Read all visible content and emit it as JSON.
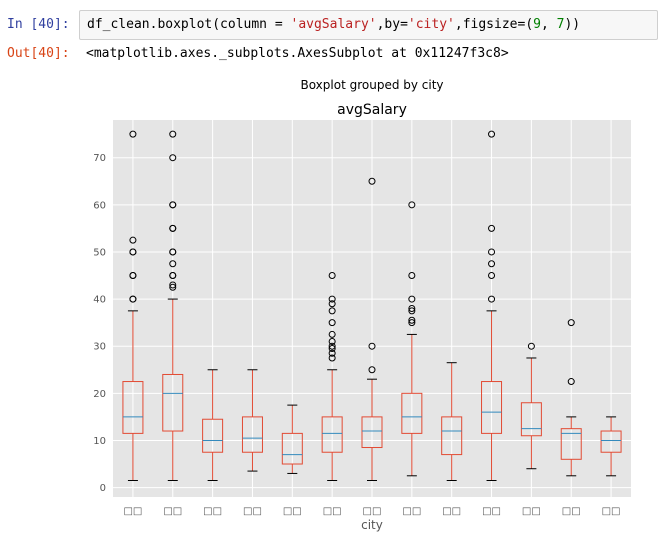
{
  "cell_input": {
    "prompt": "In [40]:",
    "code_parts": [
      {
        "text": "df_clean.boxplot(column = ",
        "kind": "plain"
      },
      {
        "text": "'avgSalary'",
        "kind": "str"
      },
      {
        "text": ",by=",
        "kind": "plain"
      },
      {
        "text": "'city'",
        "kind": "str"
      },
      {
        "text": ",figsize=(",
        "kind": "plain"
      },
      {
        "text": "9",
        "kind": "num"
      },
      {
        "text": ", ",
        "kind": "plain"
      },
      {
        "text": "7",
        "kind": "num"
      },
      {
        "text": "))",
        "kind": "plain"
      }
    ]
  },
  "cell_output": {
    "prompt": "Out[40]:",
    "text": "<matplotlib.axes._subplots.AxesSubplot at 0x11247f3c8>"
  },
  "chart_data": {
    "type": "boxplot",
    "suptitle": "Boxplot grouped by city",
    "title": "avgSalary",
    "xlabel": "city",
    "ylabel": "",
    "ylim": [
      -2,
      78
    ],
    "yticks": [
      0,
      10,
      20,
      30,
      40,
      50,
      60,
      70
    ],
    "grid": true,
    "colors": {
      "background": "#e5e5e5",
      "grid": "#ffffff",
      "box": "#e24a33",
      "median": "#348abd",
      "flier": "#000000",
      "text": "#555555"
    },
    "categories": [
      "□□",
      "□□",
      "□□",
      "□□",
      "□□",
      "□□",
      "□□",
      "□□",
      "□□",
      "□□",
      "□□",
      "□□",
      "□□"
    ],
    "boxes": [
      {
        "whislo": 1.5,
        "q1": 11.5,
        "med": 15,
        "q3": 22.5,
        "whishi": 37.5,
        "fliers": [
          40,
          40,
          45,
          45,
          50,
          50,
          52.5,
          75
        ]
      },
      {
        "whislo": 1.5,
        "q1": 12,
        "med": 20,
        "q3": 24,
        "whishi": 40,
        "fliers": [
          42.5,
          43,
          45,
          45,
          47.5,
          50,
          50,
          55,
          55,
          60,
          60,
          70,
          75
        ]
      },
      {
        "whislo": 1.5,
        "q1": 7.5,
        "med": 10,
        "q3": 14.5,
        "whishi": 25,
        "fliers": []
      },
      {
        "whislo": 3.5,
        "q1": 7.5,
        "med": 10.5,
        "q3": 15,
        "whishi": 25,
        "fliers": []
      },
      {
        "whislo": 3,
        "q1": 5,
        "med": 7,
        "q3": 11.5,
        "whishi": 17.5,
        "fliers": []
      },
      {
        "whislo": 1.5,
        "q1": 7.5,
        "med": 11.5,
        "q3": 15,
        "whishi": 25,
        "fliers": [
          27.5,
          28.5,
          29.5,
          30,
          31,
          32.5,
          35,
          37.5,
          39,
          40,
          45
        ]
      },
      {
        "whislo": 1.5,
        "q1": 8.5,
        "med": 12,
        "q3": 15,
        "whishi": 23,
        "fliers": [
          25,
          30,
          65
        ]
      },
      {
        "whislo": 2.5,
        "q1": 11.5,
        "med": 15,
        "q3": 20,
        "whishi": 32.5,
        "fliers": [
          35,
          35.5,
          37.5,
          38,
          40,
          45,
          60
        ]
      },
      {
        "whislo": 1.5,
        "q1": 7,
        "med": 12,
        "q3": 15,
        "whishi": 26.5,
        "fliers": []
      },
      {
        "whislo": 1.5,
        "q1": 11.5,
        "med": 16,
        "q3": 22.5,
        "whishi": 37.5,
        "fliers": [
          40,
          45,
          47.5,
          50,
          55,
          75
        ]
      },
      {
        "whislo": 4,
        "q1": 11,
        "med": 12.5,
        "q3": 18,
        "whishi": 27.5,
        "fliers": [
          30
        ]
      },
      {
        "whislo": 2.5,
        "q1": 6,
        "med": 11.5,
        "q3": 12.5,
        "whishi": 15,
        "fliers": [
          22.5,
          35
        ]
      },
      {
        "whislo": 2.5,
        "q1": 7.5,
        "med": 10,
        "q3": 12,
        "whishi": 15,
        "fliers": []
      }
    ]
  }
}
